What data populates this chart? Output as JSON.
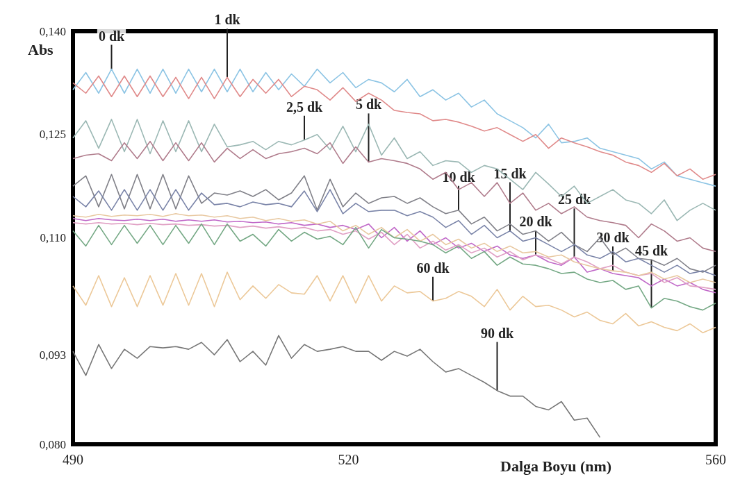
{
  "chart_data": {
    "type": "line",
    "xlabel": "Dalga Boyu (nm)",
    "ylabel": "Abs",
    "x": [
      490,
      491.4,
      492.8,
      494.2,
      495.6,
      497,
      498.4,
      499.8,
      501.2,
      502.6,
      504,
      505.4,
      506.8,
      508.2,
      509.6,
      511,
      512.4,
      513.8,
      515.2,
      516.6,
      518,
      519.4,
      520.8,
      522.2,
      523.6,
      525,
      526.4,
      527.8,
      529.2,
      530.6,
      532,
      533.4,
      534.8,
      536.2,
      537.6,
      539,
      540.4,
      541.8,
      543.2,
      544.6,
      546,
      547.4,
      548.8,
      550.2,
      551.6,
      553,
      554.4,
      555.8,
      557.2,
      558.6,
      560
    ],
    "xlim": [
      490,
      560
    ],
    "xticks": [
      490,
      520,
      560
    ],
    "ylim": [
      0.08,
      0.14
    ],
    "yticks": [
      {
        "value": 0.08,
        "label": "0,080"
      },
      {
        "value": 0.093,
        "label": "0,093"
      },
      {
        "value": 0.11,
        "label": "0,110"
      },
      {
        "value": 0.125,
        "label": "0,125"
      },
      {
        "value": 0.14,
        "label": "0,140"
      }
    ],
    "grid": false,
    "marker": "none",
    "line_style": "solid",
    "series": [
      {
        "color": "#8cc4e4",
        "values": [
          0.1315,
          0.134,
          0.131,
          0.1345,
          0.131,
          0.1345,
          0.131,
          0.1345,
          0.131,
          0.1345,
          0.1312,
          0.1345,
          0.1312,
          0.1345,
          0.1312,
          0.134,
          0.1315,
          0.1338,
          0.132,
          0.1345,
          0.1325,
          0.134,
          0.1318,
          0.133,
          0.1325,
          0.1312,
          0.133,
          0.1305,
          0.1315,
          0.13,
          0.131,
          0.129,
          0.13,
          0.128,
          0.127,
          0.126,
          0.1245,
          0.1265,
          0.1238,
          0.124,
          0.1245,
          0.123,
          0.1225,
          0.122,
          0.1215,
          0.12,
          0.121,
          0.119,
          0.1185,
          0.118,
          0.1175
        ]
      },
      {
        "color": "#e08a8a",
        "values": [
          0.1325,
          0.131,
          0.1335,
          0.1305,
          0.1335,
          0.1305,
          0.1335,
          0.1305,
          0.1333,
          0.1302,
          0.1333,
          0.1302,
          0.1333,
          0.1305,
          0.133,
          0.131,
          0.133,
          0.1305,
          0.132,
          0.1315,
          0.13,
          0.1318,
          0.1298,
          0.131,
          0.13,
          0.1285,
          0.1282,
          0.128,
          0.127,
          0.1272,
          0.1268,
          0.1262,
          0.1255,
          0.126,
          0.125,
          0.124,
          0.125,
          0.123,
          0.1245,
          0.1238,
          0.1232,
          0.1225,
          0.122,
          0.121,
          0.1205,
          0.1195,
          0.1208,
          0.119,
          0.12,
          0.1185,
          0.1192
        ]
      },
      {
        "color": "#9bb8b4",
        "values": [
          0.1245,
          0.127,
          0.123,
          0.1272,
          0.1225,
          0.1272,
          0.1222,
          0.127,
          0.1225,
          0.127,
          0.1225,
          0.1265,
          0.1232,
          0.1235,
          0.124,
          0.1228,
          0.124,
          0.1235,
          0.1242,
          0.125,
          0.1228,
          0.1262,
          0.1225,
          0.1265,
          0.122,
          0.1245,
          0.1215,
          0.1225,
          0.1205,
          0.1212,
          0.121,
          0.1195,
          0.1205,
          0.12,
          0.1185,
          0.117,
          0.1195,
          0.1178,
          0.116,
          0.1175,
          0.115,
          0.116,
          0.117,
          0.1155,
          0.115,
          0.1135,
          0.1155,
          0.1125,
          0.114,
          0.115,
          0.114
        ]
      },
      {
        "color": "#b07c8c",
        "values": [
          0.1215,
          0.122,
          0.1222,
          0.1212,
          0.1238,
          0.1215,
          0.124,
          0.1212,
          0.1238,
          0.1212,
          0.1238,
          0.121,
          0.123,
          0.1215,
          0.1228,
          0.1215,
          0.1222,
          0.1225,
          0.123,
          0.1222,
          0.1238,
          0.1208,
          0.1232,
          0.121,
          0.1215,
          0.1212,
          0.1208,
          0.12,
          0.1185,
          0.1195,
          0.117,
          0.118,
          0.116,
          0.118,
          0.115,
          0.1165,
          0.114,
          0.115,
          0.1135,
          0.1145,
          0.113,
          0.1125,
          0.1122,
          0.1118,
          0.11,
          0.112,
          0.111,
          0.1095,
          0.11,
          0.1085,
          0.108
        ]
      },
      {
        "color": "#808088",
        "values": [
          0.1175,
          0.119,
          0.1145,
          0.1192,
          0.1142,
          0.1192,
          0.1142,
          0.1192,
          0.1142,
          0.119,
          0.115,
          0.1165,
          0.1162,
          0.1168,
          0.116,
          0.117,
          0.1155,
          0.1165,
          0.119,
          0.114,
          0.1185,
          0.1145,
          0.1165,
          0.115,
          0.1158,
          0.116,
          0.115,
          0.1158,
          0.1145,
          0.1135,
          0.114,
          0.112,
          0.113,
          0.111,
          0.112,
          0.1105,
          0.111,
          0.1095,
          0.1108,
          0.109,
          0.108,
          0.11,
          0.1075,
          0.1085,
          0.107,
          0.1068,
          0.106,
          0.107,
          0.1055,
          0.105,
          0.106
        ]
      },
      {
        "color": "#7a84a8",
        "values": [
          0.116,
          0.1145,
          0.1168,
          0.114,
          0.117,
          0.114,
          0.117,
          0.114,
          0.117,
          0.114,
          0.1165,
          0.1148,
          0.115,
          0.1145,
          0.1152,
          0.1148,
          0.115,
          0.1145,
          0.1168,
          0.1138,
          0.117,
          0.1135,
          0.115,
          0.1138,
          0.114,
          0.114,
          0.1132,
          0.1138,
          0.113,
          0.1115,
          0.1125,
          0.1105,
          0.1118,
          0.11,
          0.111,
          0.1095,
          0.11,
          0.109,
          0.108,
          0.109,
          0.1075,
          0.107,
          0.108,
          0.1065,
          0.107,
          0.106,
          0.105,
          0.106,
          0.1048,
          0.1052,
          0.1045
        ]
      },
      {
        "color": "#c068c8",
        "values": [
          0.1128,
          0.1125,
          0.1128,
          0.1126,
          0.1125,
          0.1127,
          0.1125,
          0.1127,
          0.1124,
          0.1126,
          0.1124,
          0.1126,
          0.1123,
          0.1124,
          0.1122,
          0.1123,
          0.112,
          0.1122,
          0.1118,
          0.112,
          0.1115,
          0.1118,
          0.1112,
          0.112,
          0.11,
          0.1115,
          0.1095,
          0.111,
          0.109,
          0.11,
          0.1085,
          0.1092,
          0.108,
          0.1088,
          0.1075,
          0.107,
          0.1075,
          0.1065,
          0.106,
          0.1072,
          0.105,
          0.1055,
          0.1048,
          0.1045,
          0.1042,
          0.103,
          0.104,
          0.103,
          0.1035,
          0.1025,
          0.102
        ]
      },
      {
        "color": "#e0a0c4",
        "values": [
          0.1122,
          0.112,
          0.1122,
          0.112,
          0.1121,
          0.1119,
          0.1121,
          0.1119,
          0.112,
          0.1118,
          0.1119,
          0.1117,
          0.1118,
          0.1115,
          0.1117,
          0.1114,
          0.1116,
          0.1113,
          0.1115,
          0.111,
          0.1112,
          0.1105,
          0.111,
          0.1098,
          0.1108,
          0.109,
          0.1105,
          0.1085,
          0.1095,
          0.1082,
          0.109,
          0.1078,
          0.1085,
          0.1072,
          0.108,
          0.1068,
          0.1075,
          0.107,
          0.1062,
          0.1072,
          0.1065,
          0.1055,
          0.106,
          0.105,
          0.1045,
          0.1048,
          0.1035,
          0.1042,
          0.103,
          0.1028,
          0.1025
        ]
      },
      {
        "color": "#e8c8a0",
        "values": [
          0.1132,
          0.113,
          0.1134,
          0.1131,
          0.1133,
          0.1132,
          0.1134,
          0.1131,
          0.1135,
          0.1132,
          0.1133,
          0.113,
          0.1132,
          0.1128,
          0.113,
          0.1125,
          0.1128,
          0.1124,
          0.1126,
          0.112,
          0.1124,
          0.111,
          0.1118,
          0.1105,
          0.1115,
          0.11,
          0.1112,
          0.1095,
          0.1105,
          0.109,
          0.1098,
          0.1085,
          0.1092,
          0.108,
          0.1088,
          0.1078,
          0.108,
          0.1072,
          0.1075,
          0.1065,
          0.106,
          0.1055,
          0.1052,
          0.105,
          0.1045,
          0.105,
          0.104,
          0.1045,
          0.1035,
          0.104,
          0.1035
        ]
      },
      {
        "color": "#74a884",
        "values": [
          0.111,
          0.1088,
          0.1118,
          0.109,
          0.1118,
          0.1092,
          0.1118,
          0.109,
          0.1118,
          0.1092,
          0.112,
          0.109,
          0.112,
          0.1095,
          0.1105,
          0.1088,
          0.1112,
          0.1095,
          0.1108,
          0.1098,
          0.1102,
          0.109,
          0.1115,
          0.1085,
          0.1112,
          0.11,
          0.1098,
          0.1095,
          0.109,
          0.1078,
          0.1088,
          0.107,
          0.108,
          0.106,
          0.1072,
          0.1062,
          0.106,
          0.1055,
          0.1048,
          0.105,
          0.104,
          0.1035,
          0.1038,
          0.1025,
          0.103,
          0.0998,
          0.1012,
          0.1008,
          0.1,
          0.0995,
          0.1005
        ]
      },
      {
        "color": "#ecc898",
        "values": [
          0.103,
          0.1002,
          0.1045,
          0.1,
          0.1042,
          0.1,
          0.1045,
          0.1002,
          0.1048,
          0.1002,
          0.1048,
          0.1,
          0.105,
          0.101,
          0.103,
          0.1012,
          0.1032,
          0.102,
          0.1018,
          0.1045,
          0.1008,
          0.1045,
          0.1005,
          0.1045,
          0.1008,
          0.103,
          0.102,
          0.1022,
          0.1008,
          0.1012,
          0.1022,
          0.1015,
          0.1,
          0.1025,
          0.0995,
          0.1015,
          0.1,
          0.1002,
          0.0995,
          0.0985,
          0.0992,
          0.098,
          0.0975,
          0.099,
          0.0972,
          0.0978,
          0.097,
          0.0965,
          0.0975,
          0.0962,
          0.097
        ]
      },
      {
        "color": "#777777",
        "values": [
          0.0935,
          0.09,
          0.0945,
          0.091,
          0.0938,
          0.0925,
          0.0942,
          0.094,
          0.0942,
          0.0938,
          0.0948,
          0.093,
          0.0952,
          0.092,
          0.0935,
          0.0915,
          0.0958,
          0.0925,
          0.0945,
          0.0935,
          0.0938,
          0.0942,
          0.0935,
          0.0935,
          0.0922,
          0.0935,
          0.0928,
          0.0938,
          0.092,
          0.0905,
          0.091,
          0.09,
          0.089,
          0.0878,
          0.087,
          0.087,
          0.0855,
          0.085,
          0.0862,
          0.0835,
          0.0838,
          0.081,
          null,
          null,
          null,
          null,
          null,
          null,
          null,
          null,
          null
        ]
      }
    ],
    "annotations": [
      {
        "text": "0 dk",
        "x": 494.2,
        "y": 0.1345
      },
      {
        "text": "1 dk",
        "x": 506.8,
        "y": 0.1333
      },
      {
        "text": "2,5 dk",
        "x": 515.2,
        "y": 0.1242
      },
      {
        "text": "5 dk",
        "x": 522.2,
        "y": 0.121
      },
      {
        "text": "10 dk",
        "x": 532,
        "y": 0.114
      },
      {
        "text": "15 dk",
        "x": 537.6,
        "y": 0.111
      },
      {
        "text": "20 dk",
        "x": 540.4,
        "y": 0.1075
      },
      {
        "text": "25 dk",
        "x": 544.6,
        "y": 0.1072
      },
      {
        "text": "30 dk",
        "x": 548.8,
        "y": 0.1052
      },
      {
        "text": "45 dk",
        "x": 553,
        "y": 0.0998
      },
      {
        "text": "60 dk",
        "x": 529.2,
        "y": 0.1008
      },
      {
        "text": "90 dk",
        "x": 536.2,
        "y": 0.0878
      }
    ]
  }
}
